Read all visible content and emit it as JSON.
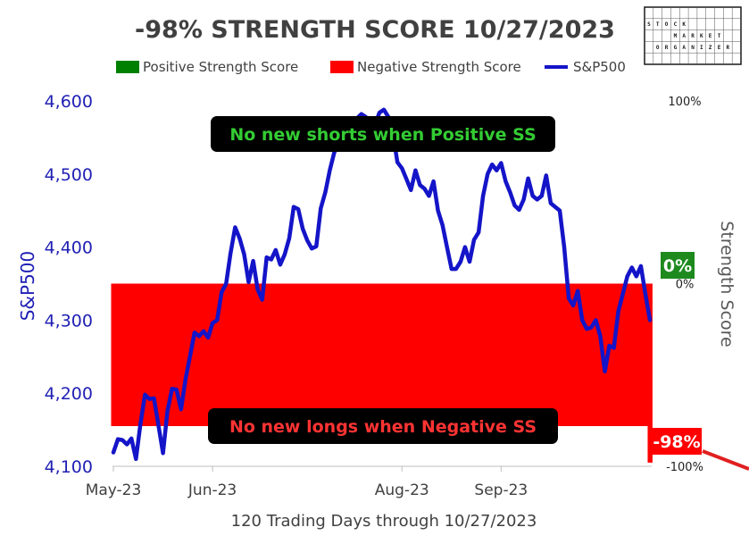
{
  "chart_data": {
    "type": "bar+line",
    "title": "-98% STRENGTH SCORE 10/27/2023",
    "xlabel": "120 Trading Days through 10/27/2023",
    "ylabel_left": "S&P500",
    "ylabel_right": "Strength Score",
    "ylim_left": [
      4100,
      4600
    ],
    "ylim_right": [
      -100,
      100
    ],
    "yticks_left": [
      "4,100",
      "4,200",
      "4,300",
      "4,400",
      "4,500",
      "4,600"
    ],
    "yticks_right": [
      "100%",
      "0%",
      "-100%"
    ],
    "xticks": [
      {
        "label": "May-23",
        "day": 0
      },
      {
        "label": "Jun-23",
        "day": 22
      },
      {
        "label": "Aug-23",
        "day": 64
      },
      {
        "label": "Sep-23",
        "day": 86
      }
    ],
    "grid": false,
    "legend": [
      {
        "label": "Positive Strength Score",
        "color": "#008000"
      },
      {
        "label": "Negative Strength Score",
        "color": "#ff0000"
      },
      {
        "label": "S&P500",
        "color": "#1414c8"
      }
    ],
    "legend_position": "top",
    "strength_score": [
      -78,
      -78,
      -78,
      -78,
      -78,
      -78,
      -78,
      -78,
      -78,
      -78,
      -78,
      -78,
      -78,
      -78,
      -78,
      -78,
      -78,
      -78,
      -78,
      -78,
      -78,
      -78,
      -78,
      -78,
      -78,
      -78,
      -78,
      -78,
      -78,
      -78,
      -78,
      -78,
      -78,
      -78,
      -78,
      -78,
      -78,
      -78,
      -78,
      -78,
      -78,
      -78,
      -78,
      -78,
      -78,
      -78,
      -78,
      -78,
      -78,
      -78,
      -78,
      -78,
      -78,
      -78,
      -78,
      -78,
      -78,
      -78,
      -78,
      -78,
      -78,
      -78,
      -78,
      -78,
      -78,
      -78,
      -78,
      -78,
      -78,
      -78,
      -78,
      -78,
      -78,
      -78,
      -78,
      -78,
      -78,
      -78,
      -78,
      -78,
      -78,
      -78,
      -78,
      -78,
      -78,
      -78,
      -78,
      -78,
      -78,
      -78,
      -78,
      -78,
      -78,
      -78,
      -78,
      -78,
      -78,
      -78,
      -78,
      -78,
      -78,
      -78,
      -78,
      -78,
      -78,
      -78,
      -78,
      -78,
      -78,
      -78,
      -78,
      -78,
      -78,
      -78,
      -78,
      -78,
      -78,
      -78,
      -78,
      -98
    ],
    "sp500": [
      4119,
      4137,
      4136,
      4130,
      4138,
      4110,
      4158,
      4198,
      4192,
      4193,
      4156,
      4118,
      4176,
      4206,
      4205,
      4178,
      4219,
      4251,
      4283,
      4278,
      4285,
      4276,
      4296,
      4300,
      4338,
      4350,
      4392,
      4427,
      4412,
      4390,
      4352,
      4381,
      4342,
      4328,
      4386,
      4383,
      4396,
      4376,
      4390,
      4412,
      4455,
      4452,
      4425,
      4409,
      4398,
      4401,
      4453,
      4475,
      4505,
      4530,
      4538,
      4548,
      4563,
      4576,
      4576,
      4582,
      4578,
      4567,
      4567,
      4584,
      4588,
      4578,
      4555,
      4516,
      4508,
      4493,
      4478,
      4505,
      4485,
      4480,
      4470,
      4490,
      4450,
      4430,
      4400,
      4370,
      4370,
      4380,
      4400,
      4380,
      4410,
      4420,
      4470,
      4500,
      4513,
      4505,
      4515,
      4490,
      4475,
      4457,
      4451,
      4465,
      4494,
      4470,
      4465,
      4470,
      4498,
      4460,
      4455,
      4450,
      4400,
      4330,
      4320,
      4340,
      4300,
      4288,
      4290,
      4300,
      4278,
      4230,
      4265,
      4262,
      4312,
      4336,
      4360,
      4372,
      4360,
      4374,
      4336,
      4300
    ],
    "annotations": [
      {
        "text": "No new shorts when Positive SS",
        "color": "#33cc33",
        "bg": "#000000"
      },
      {
        "text": "No new longs when Negative SS",
        "color": "#ff3333",
        "bg": "#000000"
      }
    ],
    "badges": [
      {
        "text": "0%",
        "bg": "#1e8a1e"
      },
      {
        "text": "-98%",
        "bg": "#ff0000"
      }
    ]
  },
  "logo": {
    "rows": [
      "STOCK",
      "MARKET",
      "ORGANIZER"
    ]
  }
}
